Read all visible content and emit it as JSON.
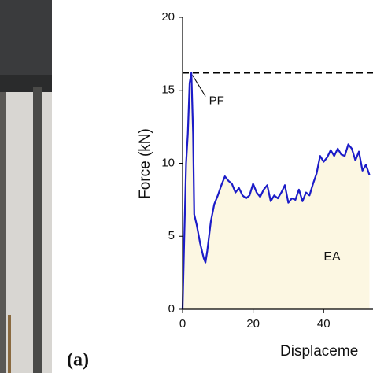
{
  "chart_data": {
    "type": "line",
    "x_label": "Displaceme",
    "y_label": "Force (kN)",
    "x": [
      0,
      0.5,
      1,
      1.5,
      2,
      2.5,
      3,
      3.3,
      4,
      5,
      6,
      6.5,
      7,
      8,
      9,
      10,
      11,
      12,
      13,
      14,
      15,
      16,
      17,
      18,
      19,
      20,
      21,
      22,
      23,
      24,
      25,
      26,
      27,
      28,
      29,
      30,
      31,
      32,
      33,
      34,
      35,
      36,
      37,
      38,
      39,
      40,
      41,
      42,
      43,
      44,
      45,
      46,
      47,
      48,
      49,
      50,
      51,
      52,
      53
    ],
    "values": [
      0,
      5,
      10,
      12,
      15.5,
      16.2,
      12,
      6.5,
      5.8,
      4.5,
      3.5,
      3.2,
      4,
      6,
      7.2,
      7.8,
      8.5,
      9.1,
      8.8,
      8.6,
      8,
      8.3,
      7.8,
      7.6,
      7.8,
      8.6,
      8,
      7.7,
      8.2,
      8.5,
      7.4,
      7.8,
      7.6,
      8,
      8.5,
      7.3,
      7.6,
      7.5,
      8.2,
      7.4,
      8,
      7.8,
      8.6,
      9.3,
      10.5,
      10.1,
      10.4,
      10.9,
      10.5,
      11,
      10.6,
      10.5,
      11.3,
      11,
      10.2,
      10.8,
      9.5,
      9.9,
      9.2
    ],
    "color": "#1c1cc8",
    "fill_color": "#fcf7e2",
    "xlim": [
      0,
      54
    ],
    "ylim": [
      0,
      20
    ],
    "xticks": [
      0,
      20,
      40
    ],
    "yticks": [
      0,
      5,
      10,
      15,
      20
    ],
    "peak_line": 16.2,
    "peak_label": "PF",
    "area_label": "EA",
    "panel_label": "(a)"
  }
}
